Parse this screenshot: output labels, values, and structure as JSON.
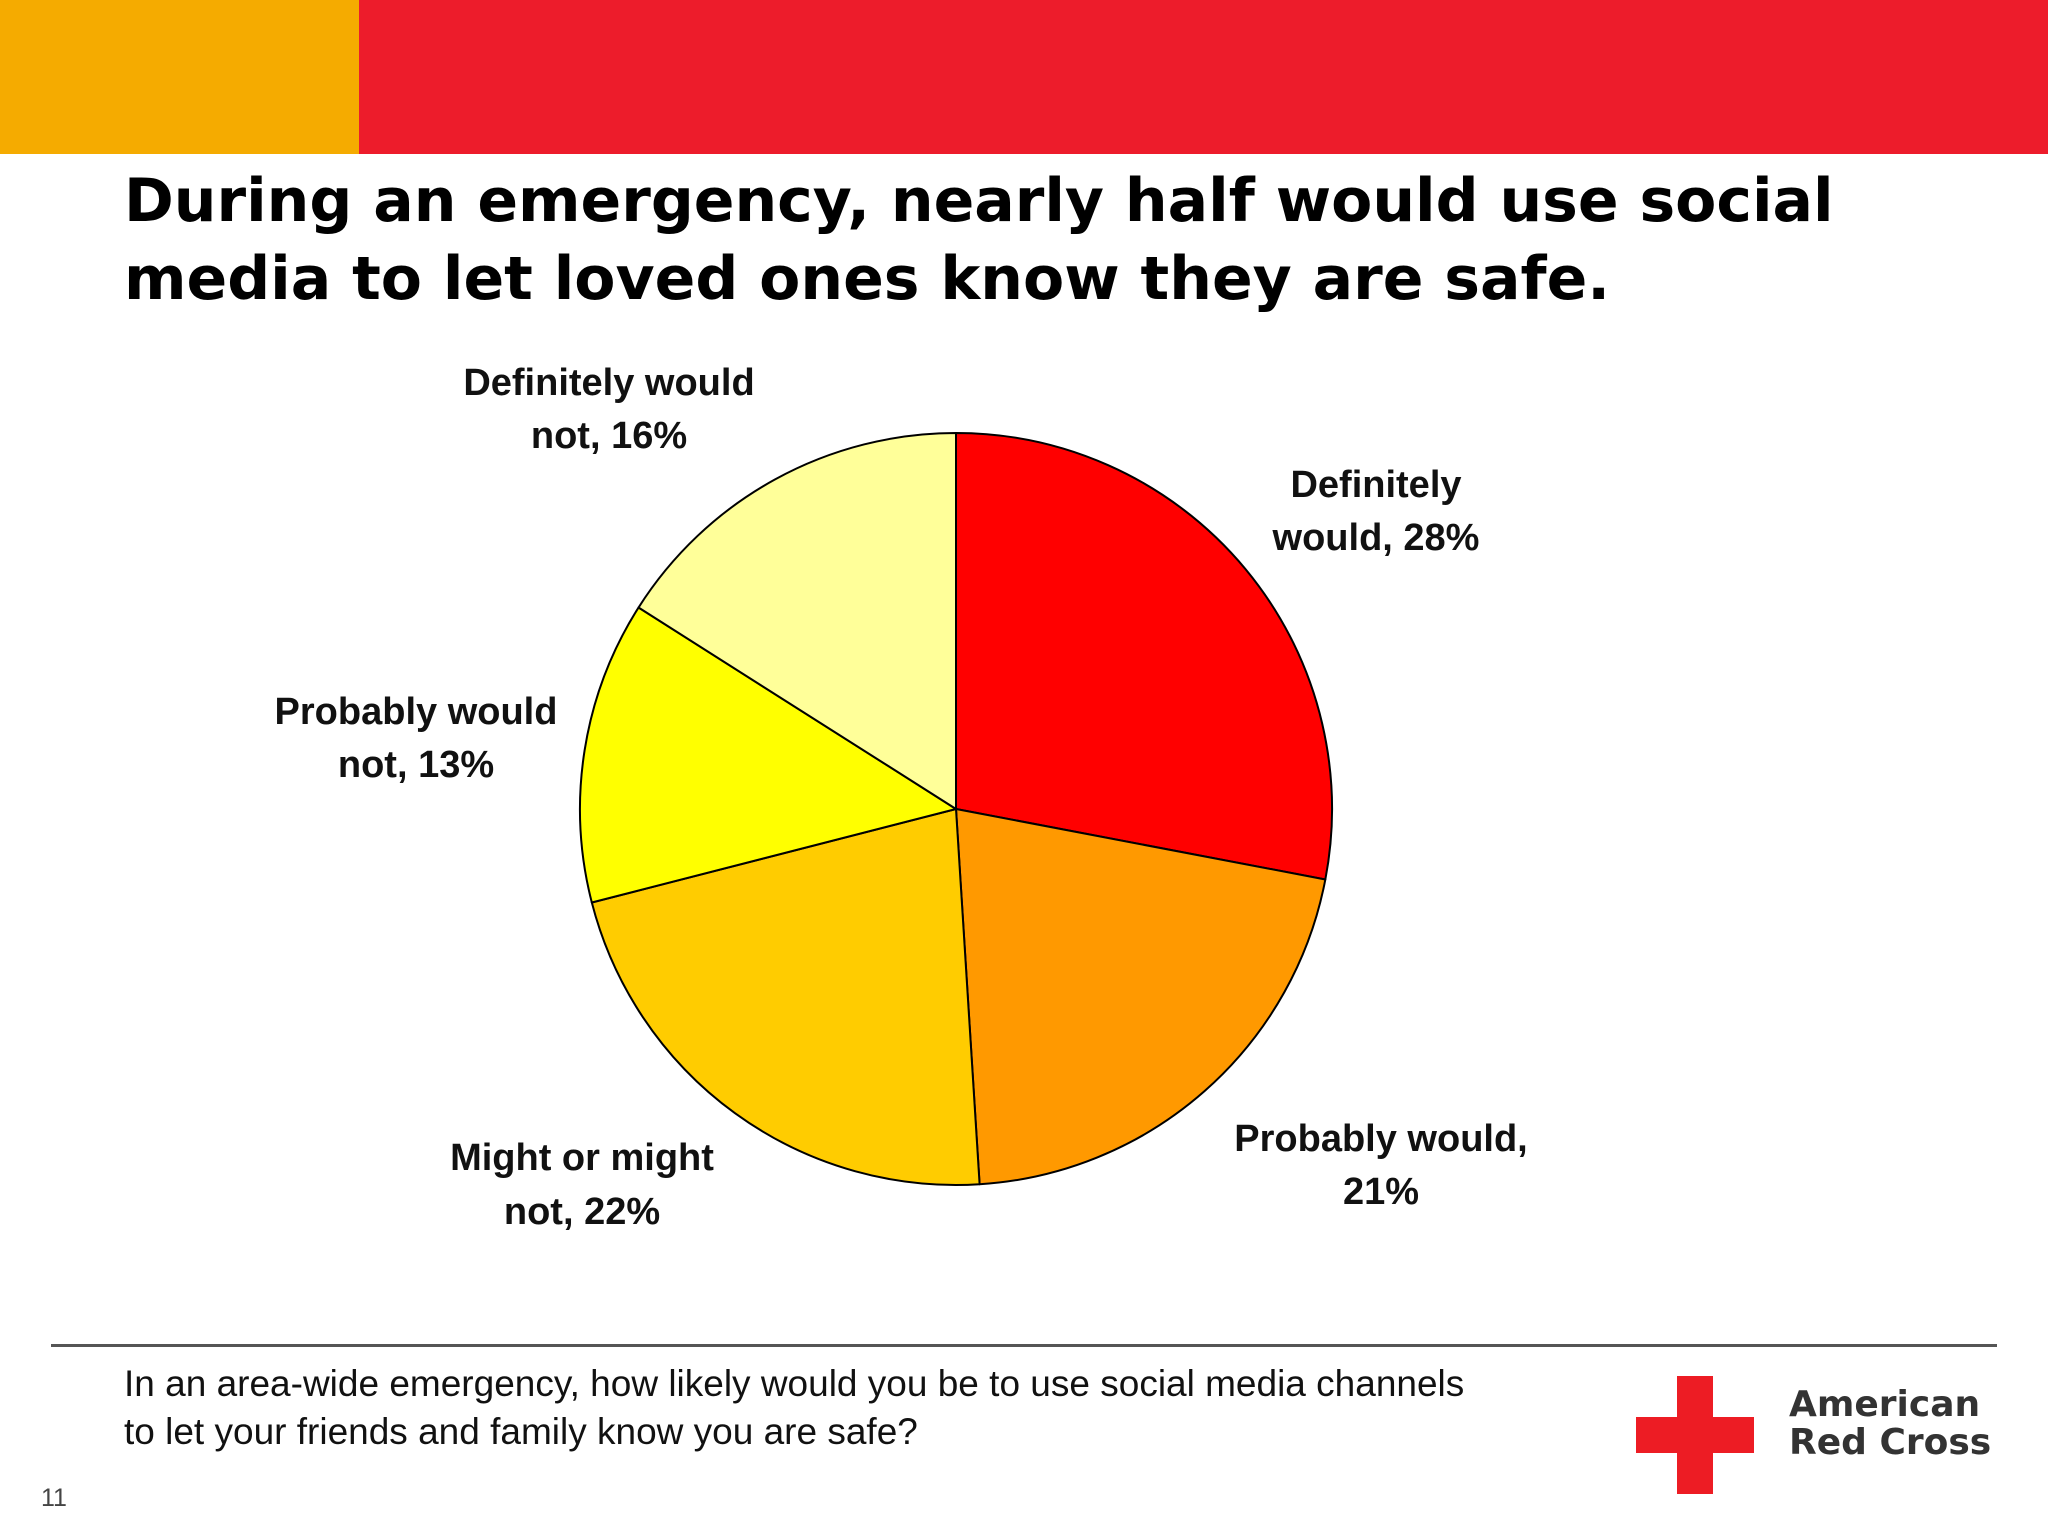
{
  "colors": {
    "orange_bar": "#F5AB00",
    "red_bar": "#ED1C2B",
    "divider": "#555555",
    "logo_red": "#ED1C24"
  },
  "slide": {
    "title_line1": "During an emergency, nearly half would use social",
    "title_line2": "media to let loved ones know they are safe.",
    "question_line1": "In an area-wide emergency, how likely would you be to use social media channels",
    "question_line2": "to let your friends and family know you are safe?",
    "page_number": "11"
  },
  "logo": {
    "line1": "American",
    "line2": "Red Cross",
    "icon": "red-cross-icon"
  },
  "chart_data": {
    "type": "pie",
    "start_angle_deg": 0,
    "direction": "clockwise",
    "slices": [
      {
        "label_line1": "Definitely",
        "label_line2": "would, 28%",
        "value": 28,
        "color": "#FF0000"
      },
      {
        "label_line1": "Probably would,",
        "label_line2": "21%",
        "value": 21,
        "color": "#FF9900"
      },
      {
        "label_line1": "Might or might",
        "label_line2": "not, 22%",
        "value": 22,
        "color": "#FFCC00"
      },
      {
        "label_line1": "Probably would",
        "label_line2": "not, 13%",
        "value": 13,
        "color": "#FFFF00"
      },
      {
        "label_line1": "Definitely would",
        "label_line2": "not, 16%",
        "value": 16,
        "color": "#FFFF99"
      }
    ]
  }
}
